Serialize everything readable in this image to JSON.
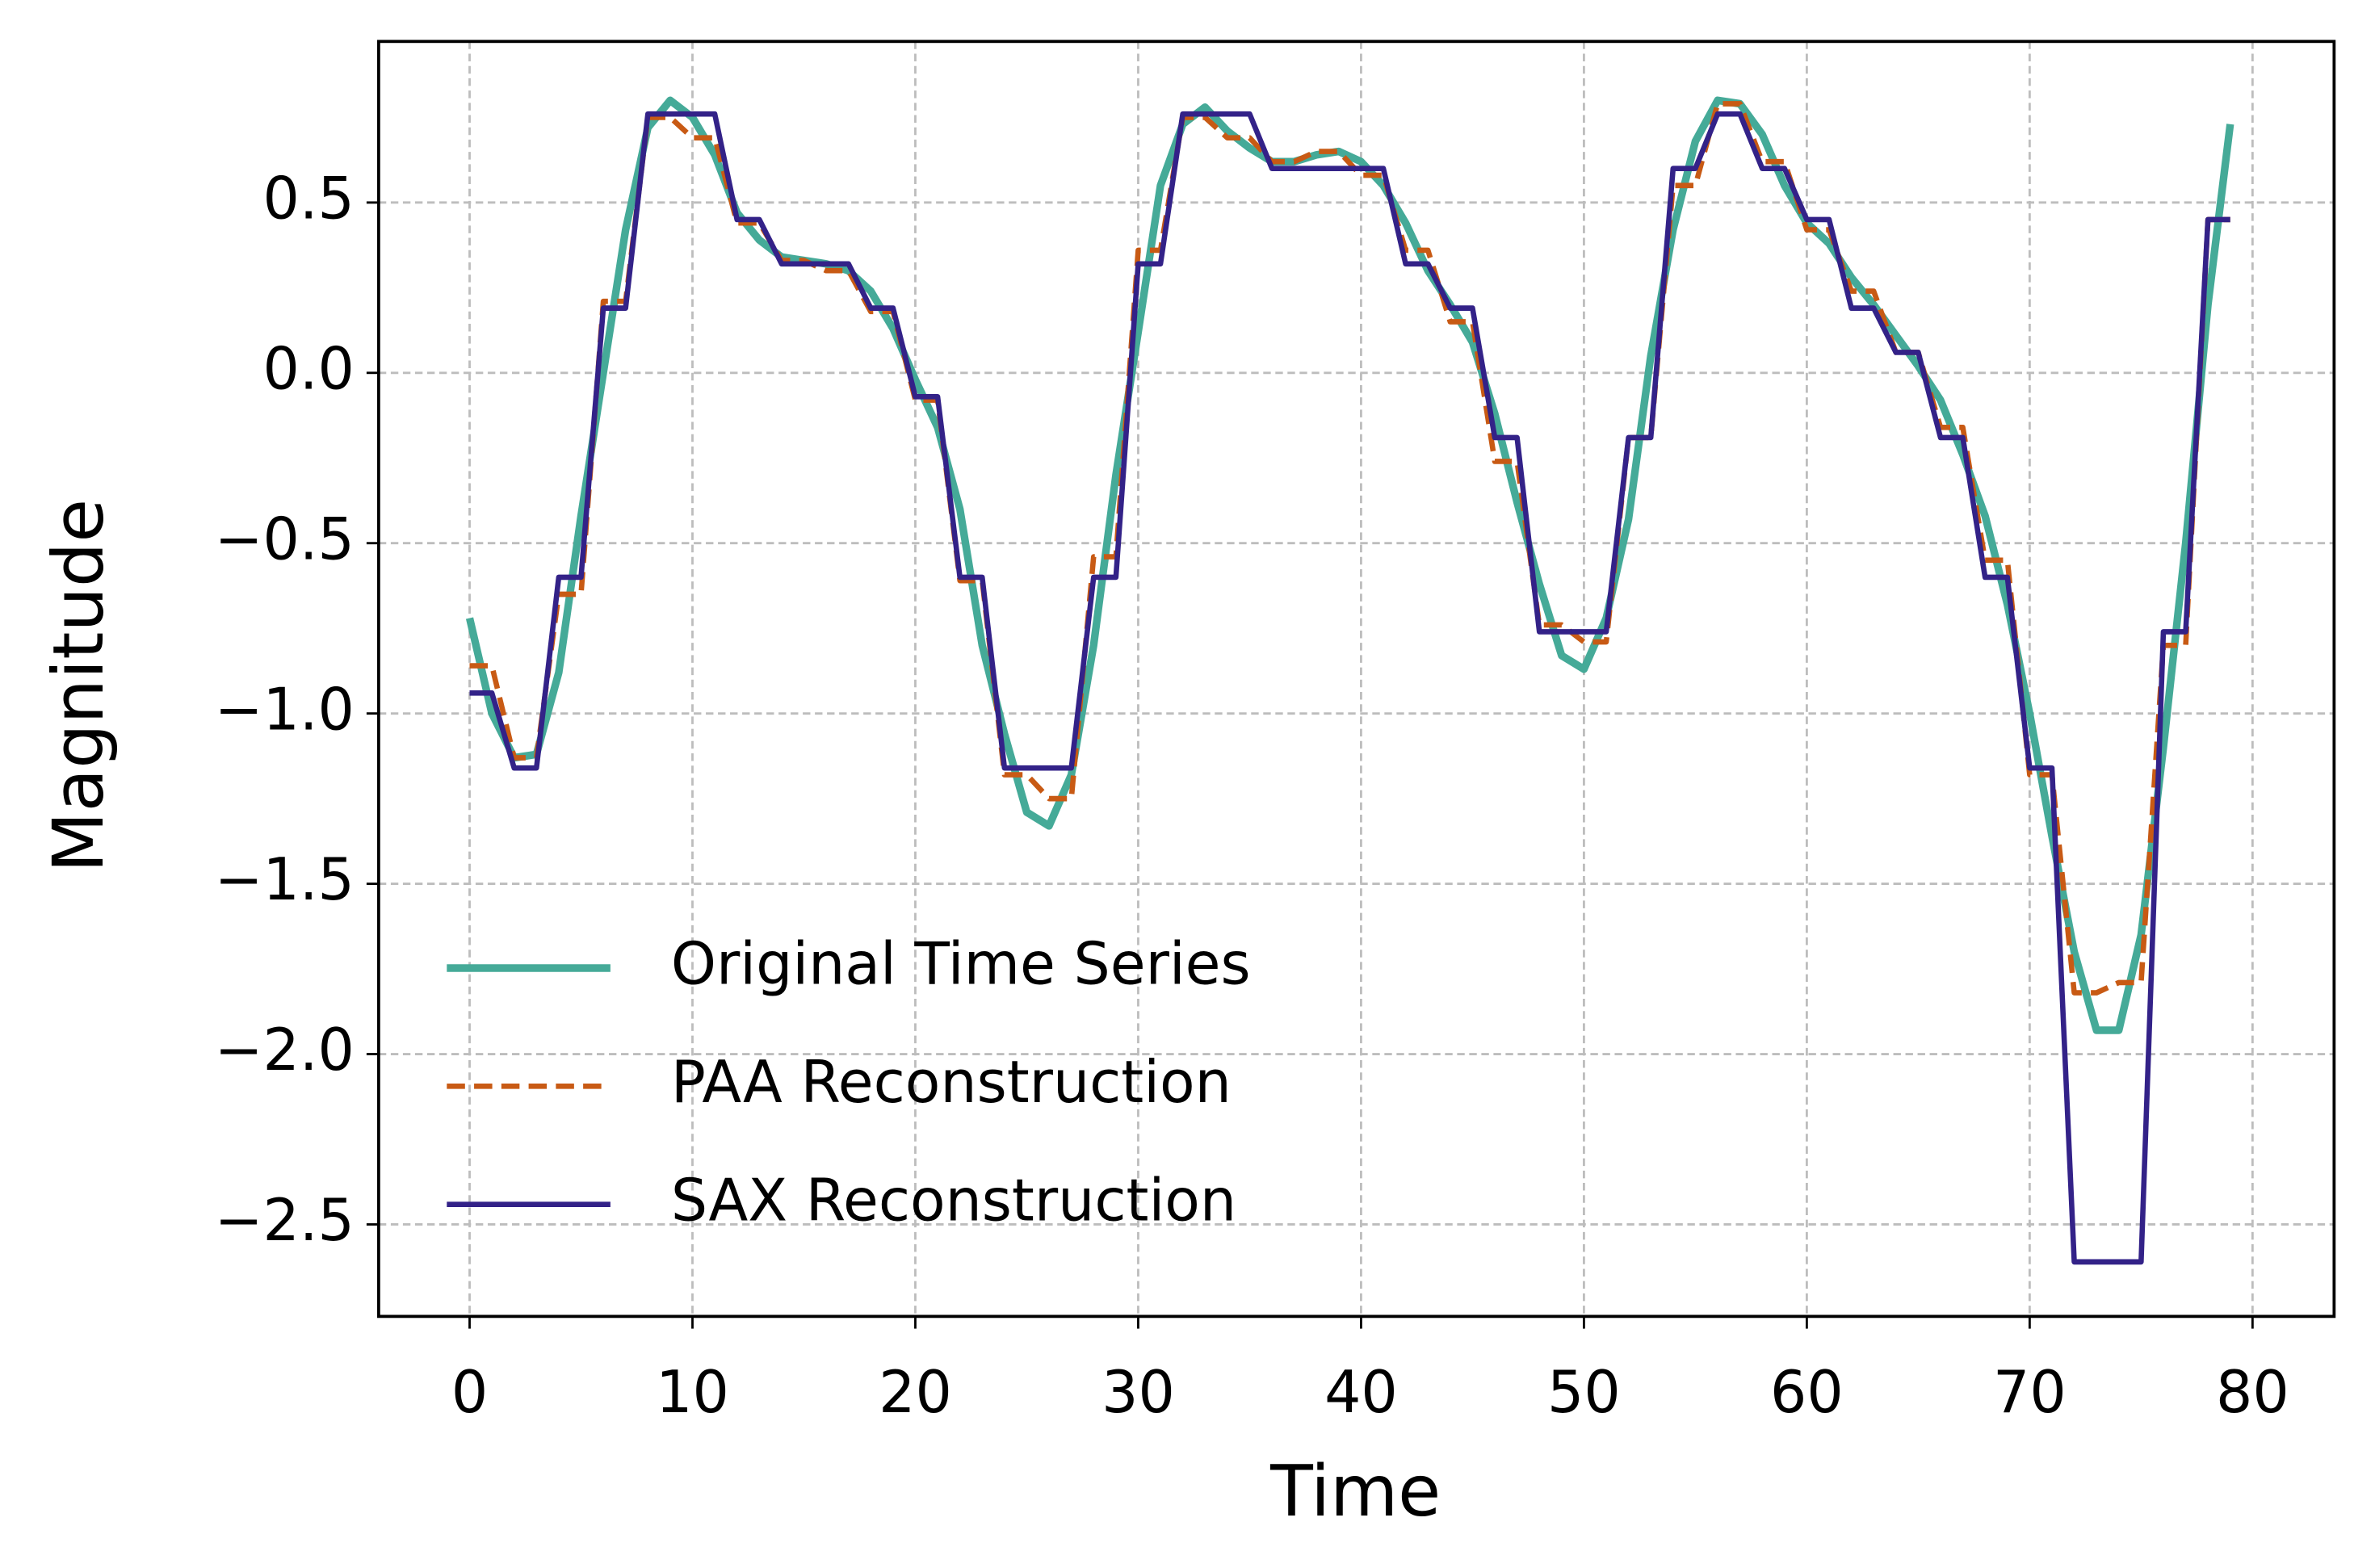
{
  "chart_data": {
    "type": "line",
    "xlabel": "Time",
    "ylabel": "Magnitude",
    "x": [
      0,
      1,
      2,
      3,
      4,
      5,
      6,
      7,
      8,
      9,
      10,
      11,
      12,
      13,
      14,
      15,
      16,
      17,
      18,
      19,
      20,
      21,
      22,
      23,
      24,
      25,
      26,
      27,
      28,
      29,
      30,
      31,
      32,
      33,
      34,
      35,
      36,
      37,
      38,
      39,
      40,
      41,
      42,
      43,
      44,
      45,
      46,
      47,
      48,
      49,
      50,
      51,
      52,
      53,
      54,
      55,
      56,
      57,
      58,
      59,
      60,
      61,
      62,
      63,
      64,
      65,
      66,
      67,
      68,
      69,
      70,
      71,
      72,
      73,
      74,
      75,
      76,
      77,
      78,
      79
    ],
    "series": [
      {
        "name": "Original Time Series",
        "color": "#45aa98",
        "linestyle": "solid",
        "values": [
          -0.72,
          -1.0,
          -1.13,
          -1.12,
          -0.88,
          -0.42,
          0.0,
          0.42,
          0.72,
          0.8,
          0.75,
          0.64,
          0.47,
          0.39,
          0.34,
          0.33,
          0.32,
          0.3,
          0.24,
          0.13,
          -0.02,
          -0.16,
          -0.4,
          -0.8,
          -1.06,
          -1.29,
          -1.33,
          -1.18,
          -0.8,
          -0.3,
          0.12,
          0.55,
          0.73,
          0.78,
          0.71,
          0.66,
          0.62,
          0.62,
          0.64,
          0.65,
          0.62,
          0.55,
          0.44,
          0.3,
          0.2,
          0.09,
          -0.12,
          -0.38,
          -0.62,
          -0.83,
          -0.87,
          -0.72,
          -0.43,
          0.05,
          0.42,
          0.68,
          0.8,
          0.79,
          0.7,
          0.55,
          0.44,
          0.38,
          0.28,
          0.2,
          0.11,
          0.02,
          -0.08,
          -0.24,
          -0.42,
          -0.68,
          -1.0,
          -1.36,
          -1.7,
          -1.93,
          -1.93,
          -1.65,
          -1.1,
          -0.5,
          0.2,
          0.73
        ]
      },
      {
        "name": "PAA Reconstruction",
        "color": "#c85a14",
        "linestyle": "dashed",
        "values": [
          -0.86,
          -0.86,
          -1.13,
          -1.13,
          -0.65,
          -0.65,
          0.21,
          0.21,
          0.75,
          0.75,
          0.69,
          0.69,
          0.44,
          0.44,
          0.33,
          0.33,
          0.3,
          0.3,
          0.18,
          0.18,
          -0.08,
          -0.08,
          -0.61,
          -0.61,
          -1.18,
          -1.18,
          -1.25,
          -1.25,
          -0.54,
          -0.54,
          0.36,
          0.36,
          0.75,
          0.75,
          0.69,
          0.69,
          0.62,
          0.62,
          0.65,
          0.65,
          0.58,
          0.58,
          0.36,
          0.36,
          0.15,
          0.15,
          -0.26,
          -0.26,
          -0.74,
          -0.74,
          -0.79,
          -0.79,
          -0.19,
          -0.19,
          0.55,
          0.55,
          0.79,
          0.79,
          0.62,
          0.62,
          0.42,
          0.42,
          0.24,
          0.24,
          0.06,
          0.06,
          -0.16,
          -0.16,
          -0.55,
          -0.55,
          -1.18,
          -1.18,
          -1.82,
          -1.82,
          -1.79,
          -1.79,
          -0.8,
          -0.8,
          0.45,
          0.45
        ]
      },
      {
        "name": "SAX Reconstruction",
        "color": "#332288",
        "linestyle": "solid",
        "values": [
          -0.94,
          -0.94,
          -1.16,
          -1.16,
          -0.6,
          -0.6,
          0.19,
          0.19,
          0.76,
          0.76,
          0.76,
          0.76,
          0.45,
          0.45,
          0.32,
          0.32,
          0.32,
          0.32,
          0.19,
          0.19,
          -0.07,
          -0.07,
          -0.6,
          -0.6,
          -1.16,
          -1.16,
          -1.16,
          -1.16,
          -0.6,
          -0.6,
          0.32,
          0.32,
          0.76,
          0.76,
          0.76,
          0.76,
          0.6,
          0.6,
          0.6,
          0.6,
          0.6,
          0.6,
          0.32,
          0.32,
          0.19,
          0.19,
          -0.19,
          -0.19,
          -0.76,
          -0.76,
          -0.76,
          -0.76,
          -0.19,
          -0.19,
          0.6,
          0.6,
          0.76,
          0.76,
          0.6,
          0.6,
          0.45,
          0.45,
          0.19,
          0.19,
          0.06,
          0.06,
          -0.19,
          -0.19,
          -0.6,
          -0.6,
          -1.16,
          -1.16,
          -2.61,
          -2.61,
          -2.61,
          -2.61,
          -0.76,
          -0.76,
          0.45,
          0.45
        ]
      }
    ],
    "xlim": [
      -4.08,
      83.66
    ],
    "xticks": [
      0,
      10,
      20,
      30,
      40,
      50,
      60,
      70,
      80
    ],
    "ylim": [
      -2.77,
      0.973
    ],
    "yticks": [
      {
        "value": -2.5,
        "label": "−2.5"
      },
      {
        "value": -2.0,
        "label": "−2.0"
      },
      {
        "value": -1.5,
        "label": "−1.5"
      },
      {
        "value": -1.0,
        "label": "−1.0"
      },
      {
        "value": -0.5,
        "label": "−0.5"
      },
      {
        "value": 0.0,
        "label": "0.0"
      },
      0.5
    ],
    "grid": true,
    "legend": "lower left"
  }
}
